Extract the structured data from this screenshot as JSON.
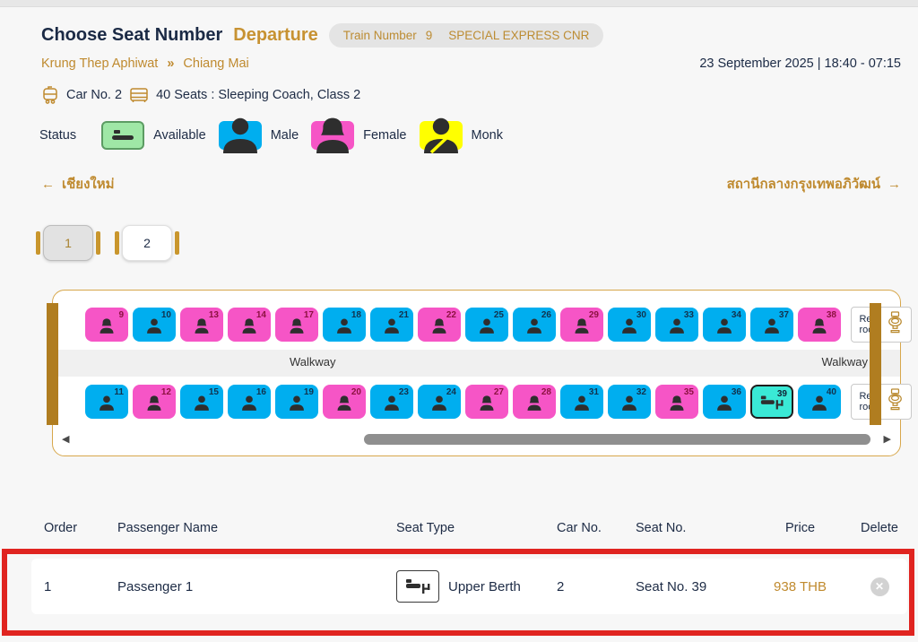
{
  "header": {
    "title": "Choose Seat Number",
    "direction": "Departure",
    "train_badge": {
      "label": "Train Number",
      "number": "9",
      "name": "SPECIAL EXPRESS CNR"
    },
    "origin": "Krung Thep Aphiwat",
    "route_separator": "»",
    "destination": "Chiang Mai",
    "datetime": "23 September 2025 | 18:40 - 07:15"
  },
  "car_info": {
    "car_label": "Car No. 2",
    "seats_label": "40 Seats : Sleeping Coach, Class 2"
  },
  "legend": {
    "title": "Status",
    "items": [
      {
        "key": "available",
        "icon": "berth",
        "label": "Available",
        "color": "#9fe7a6"
      },
      {
        "key": "male",
        "icon": "male",
        "label": "Male",
        "color": "#00aeef"
      },
      {
        "key": "female",
        "icon": "female",
        "label": "Female",
        "color": "#f655c6"
      },
      {
        "key": "monk",
        "icon": "monk",
        "label": "Monk",
        "color": "#ffff00"
      }
    ]
  },
  "nav": {
    "prev_arrow": "←",
    "prev": "เชียงใหม่",
    "next": "สถานีกลางกรุงเทพอภิวัฒน์",
    "next_arrow": "→"
  },
  "pagination": {
    "pages": [
      "1",
      "2"
    ],
    "active": "1"
  },
  "seat_map": {
    "walkway_label": "Walkway",
    "restroom_line1": "Rest",
    "restroom_line2": "room",
    "scroll_left_arrow": "◀",
    "scroll_right_arrow": "▶",
    "selected_seat": "39",
    "rows": [
      {
        "seats": [
          {
            "n": "9",
            "t": "female"
          },
          {
            "n": "10",
            "t": "male"
          },
          {
            "n": "13",
            "t": "female"
          },
          {
            "n": "14",
            "t": "female"
          },
          {
            "n": "17",
            "t": "female"
          },
          {
            "n": "18",
            "t": "male"
          },
          {
            "n": "21",
            "t": "male"
          },
          {
            "n": "22",
            "t": "female"
          },
          {
            "n": "25",
            "t": "male"
          },
          {
            "n": "26",
            "t": "male"
          },
          {
            "n": "29",
            "t": "female"
          },
          {
            "n": "30",
            "t": "male"
          },
          {
            "n": "33",
            "t": "male"
          },
          {
            "n": "34",
            "t": "male"
          },
          {
            "n": "37",
            "t": "male"
          },
          {
            "n": "38",
            "t": "female"
          }
        ]
      },
      {
        "seats": [
          {
            "n": "11",
            "t": "male"
          },
          {
            "n": "12",
            "t": "female"
          },
          {
            "n": "15",
            "t": "male"
          },
          {
            "n": "16",
            "t": "male"
          },
          {
            "n": "19",
            "t": "male"
          },
          {
            "n": "20",
            "t": "female"
          },
          {
            "n": "23",
            "t": "male"
          },
          {
            "n": "24",
            "t": "male"
          },
          {
            "n": "27",
            "t": "female"
          },
          {
            "n": "28",
            "t": "female"
          },
          {
            "n": "31",
            "t": "male"
          },
          {
            "n": "32",
            "t": "male"
          },
          {
            "n": "35",
            "t": "female"
          },
          {
            "n": "36",
            "t": "male"
          },
          {
            "n": "39",
            "t": "selected"
          },
          {
            "n": "40",
            "t": "male"
          }
        ]
      }
    ]
  },
  "table": {
    "headers": [
      "Order",
      "Passenger Name",
      "Seat Type",
      "Car No.",
      "Seat No.",
      "Price",
      "Delete"
    ],
    "rows": [
      {
        "order": "1",
        "name": "Passenger 1",
        "seat_type": "Upper Berth",
        "car": "2",
        "seat": "Seat No. 39",
        "price": "938 THB"
      }
    ]
  },
  "colors": {
    "accent_gold": "#bf8a2f",
    "navy_text": "#1b2a45",
    "male": "#00aeef",
    "female": "#f655c6",
    "available": "#9fe7a6",
    "monk": "#ffff00",
    "selected_seat": "#3ae9d6",
    "car_wall": "#b07d20",
    "highlight_red": "#e02420",
    "price_gold": "#c08a2e"
  }
}
